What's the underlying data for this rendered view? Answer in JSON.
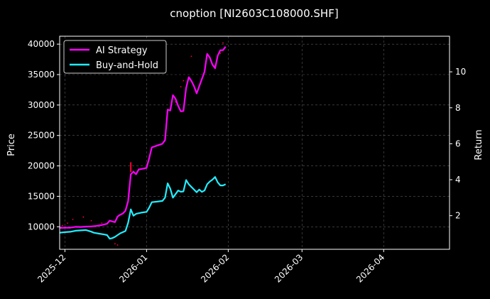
{
  "chart_data": {
    "type": "line",
    "title": "cnoption [NI2603C108000.SHF]",
    "ylabel": "Price",
    "y2label": "Return",
    "grid": true,
    "legend_position": "top-left",
    "x_ticks": [
      "2025-12",
      "2026-01",
      "2026-02",
      "2026-03",
      "2026-04"
    ],
    "x_range": [
      "2025-11-29",
      "2026-04-26"
    ],
    "ylim": [
      6300,
      41300
    ],
    "y_ticks": [
      10000,
      15000,
      20000,
      25000,
      30000,
      35000,
      40000
    ],
    "y2lim": [
      0.13,
      11.98
    ],
    "y2_ticks": [
      2,
      4,
      6,
      8,
      10
    ],
    "colors": {
      "ai": "#ff00ff",
      "bh": "#22eeff",
      "accent": "#ff0033"
    },
    "series": [
      {
        "name": "AI Strategy",
        "axis": "right",
        "points": [
          [
            "2025-11-29",
            1.32
          ],
          [
            "2025-12-01",
            1.33
          ],
          [
            "2025-12-03",
            1.33
          ],
          [
            "2025-12-05",
            1.38
          ],
          [
            "2025-12-07",
            1.37
          ],
          [
            "2025-12-09",
            1.39
          ],
          [
            "2025-12-11",
            1.4
          ],
          [
            "2025-12-13",
            1.43
          ],
          [
            "2025-12-15",
            1.48
          ],
          [
            "2025-12-17",
            1.55
          ],
          [
            "2025-12-18",
            1.72
          ],
          [
            "2025-12-19",
            1.68
          ],
          [
            "2025-12-20",
            1.64
          ],
          [
            "2025-12-21",
            1.95
          ],
          [
            "2025-12-22",
            2.05
          ],
          [
            "2025-12-23",
            2.12
          ],
          [
            "2025-12-24",
            2.28
          ],
          [
            "2025-12-25",
            2.8
          ],
          [
            "2025-12-26",
            4.3
          ],
          [
            "2025-12-27",
            4.45
          ],
          [
            "2025-12-28",
            4.3
          ],
          [
            "2025-12-29",
            4.57
          ],
          [
            "2025-12-31",
            4.62
          ],
          [
            "2026-01-01",
            4.66
          ],
          [
            "2026-01-02",
            5.2
          ],
          [
            "2026-01-03",
            5.8
          ],
          [
            "2026-01-05",
            5.9
          ],
          [
            "2026-01-06",
            5.95
          ],
          [
            "2026-01-07",
            6.0
          ],
          [
            "2026-01-08",
            6.2
          ],
          [
            "2026-01-09",
            7.9
          ],
          [
            "2026-01-10",
            7.85
          ],
          [
            "2026-01-11",
            8.7
          ],
          [
            "2026-01-12",
            8.5
          ],
          [
            "2026-01-13",
            8.1
          ],
          [
            "2026-01-14",
            7.8
          ],
          [
            "2026-01-15",
            7.82
          ],
          [
            "2026-01-16",
            9.1
          ],
          [
            "2026-01-17",
            9.7
          ],
          [
            "2026-01-18",
            9.5
          ],
          [
            "2026-01-19",
            9.2
          ],
          [
            "2026-01-20",
            8.8
          ],
          [
            "2026-01-21",
            9.2
          ],
          [
            "2026-01-22",
            9.6
          ],
          [
            "2026-01-23",
            10.0
          ],
          [
            "2026-01-24",
            11.0
          ],
          [
            "2026-01-25",
            10.8
          ],
          [
            "2026-01-26",
            10.4
          ],
          [
            "2026-01-27",
            10.2
          ],
          [
            "2026-01-28",
            10.9
          ],
          [
            "2026-01-29",
            11.2
          ],
          [
            "2026-01-30",
            11.2
          ],
          [
            "2026-01-31",
            11.4
          ]
        ]
      },
      {
        "name": "Buy-and-Hold",
        "axis": "right",
        "points": [
          [
            "2025-11-29",
            1.05
          ],
          [
            "2025-12-01",
            1.08
          ],
          [
            "2025-12-03",
            1.1
          ],
          [
            "2025-12-04",
            1.13
          ],
          [
            "2025-12-05",
            1.16
          ],
          [
            "2025-12-07",
            1.18
          ],
          [
            "2025-12-09",
            1.2
          ],
          [
            "2025-12-11",
            1.11
          ],
          [
            "2025-12-12",
            1.05
          ],
          [
            "2025-12-14",
            1.0
          ],
          [
            "2025-12-16",
            0.95
          ],
          [
            "2025-12-17",
            0.92
          ],
          [
            "2025-12-18",
            0.72
          ],
          [
            "2025-12-19",
            0.75
          ],
          [
            "2025-12-20",
            0.82
          ],
          [
            "2025-12-22",
            1.02
          ],
          [
            "2025-12-24",
            1.15
          ],
          [
            "2025-12-25",
            1.6
          ],
          [
            "2025-12-26",
            2.35
          ],
          [
            "2025-12-27",
            2.0
          ],
          [
            "2025-12-28",
            2.1
          ],
          [
            "2025-12-30",
            2.17
          ],
          [
            "2026-01-01",
            2.21
          ],
          [
            "2026-01-02",
            2.45
          ],
          [
            "2026-01-03",
            2.75
          ],
          [
            "2026-01-05",
            2.78
          ],
          [
            "2026-01-06",
            2.8
          ],
          [
            "2026-01-07",
            2.82
          ],
          [
            "2026-01-08",
            3.0
          ],
          [
            "2026-01-09",
            3.8
          ],
          [
            "2026-01-10",
            3.5
          ],
          [
            "2026-01-11",
            3.0
          ],
          [
            "2026-01-12",
            3.2
          ],
          [
            "2026-01-13",
            3.4
          ],
          [
            "2026-01-14",
            3.33
          ],
          [
            "2026-01-15",
            3.35
          ],
          [
            "2026-01-16",
            3.98
          ],
          [
            "2026-01-17",
            3.75
          ],
          [
            "2026-01-18",
            3.6
          ],
          [
            "2026-01-19",
            3.45
          ],
          [
            "2026-01-20",
            3.3
          ],
          [
            "2026-01-21",
            3.45
          ],
          [
            "2026-01-22",
            3.32
          ],
          [
            "2026-01-23",
            3.4
          ],
          [
            "2026-01-24",
            3.75
          ],
          [
            "2026-01-25",
            3.9
          ],
          [
            "2026-01-26",
            4.0
          ],
          [
            "2026-01-27",
            4.15
          ],
          [
            "2026-01-28",
            3.85
          ],
          [
            "2026-01-29",
            3.68
          ],
          [
            "2026-01-30",
            3.68
          ],
          [
            "2026-01-31",
            3.75
          ]
        ]
      }
    ],
    "markers": [
      {
        "kind": "vertical-segment",
        "date": "2025-12-26",
        "y0": 19000,
        "y1": 20600
      }
    ],
    "scatter": [
      [
        "2025-11-30",
        10200
      ],
      [
        "2025-12-02",
        10600
      ],
      [
        "2025-12-04",
        11200
      ],
      [
        "2025-12-08",
        11600
      ],
      [
        "2025-12-11",
        11000
      ],
      [
        "2025-12-15",
        10600
      ],
      [
        "2025-12-20",
        7200
      ],
      [
        "2025-12-21",
        7000
      ],
      [
        "2026-01-12",
        30500
      ],
      [
        "2026-01-14",
        33000
      ],
      [
        "2026-01-15",
        34000
      ],
      [
        "2026-01-18",
        38000
      ],
      [
        "2026-01-27",
        36500
      ],
      [
        "2026-01-29",
        38500
      ],
      [
        "2026-01-30",
        40200
      ]
    ]
  }
}
